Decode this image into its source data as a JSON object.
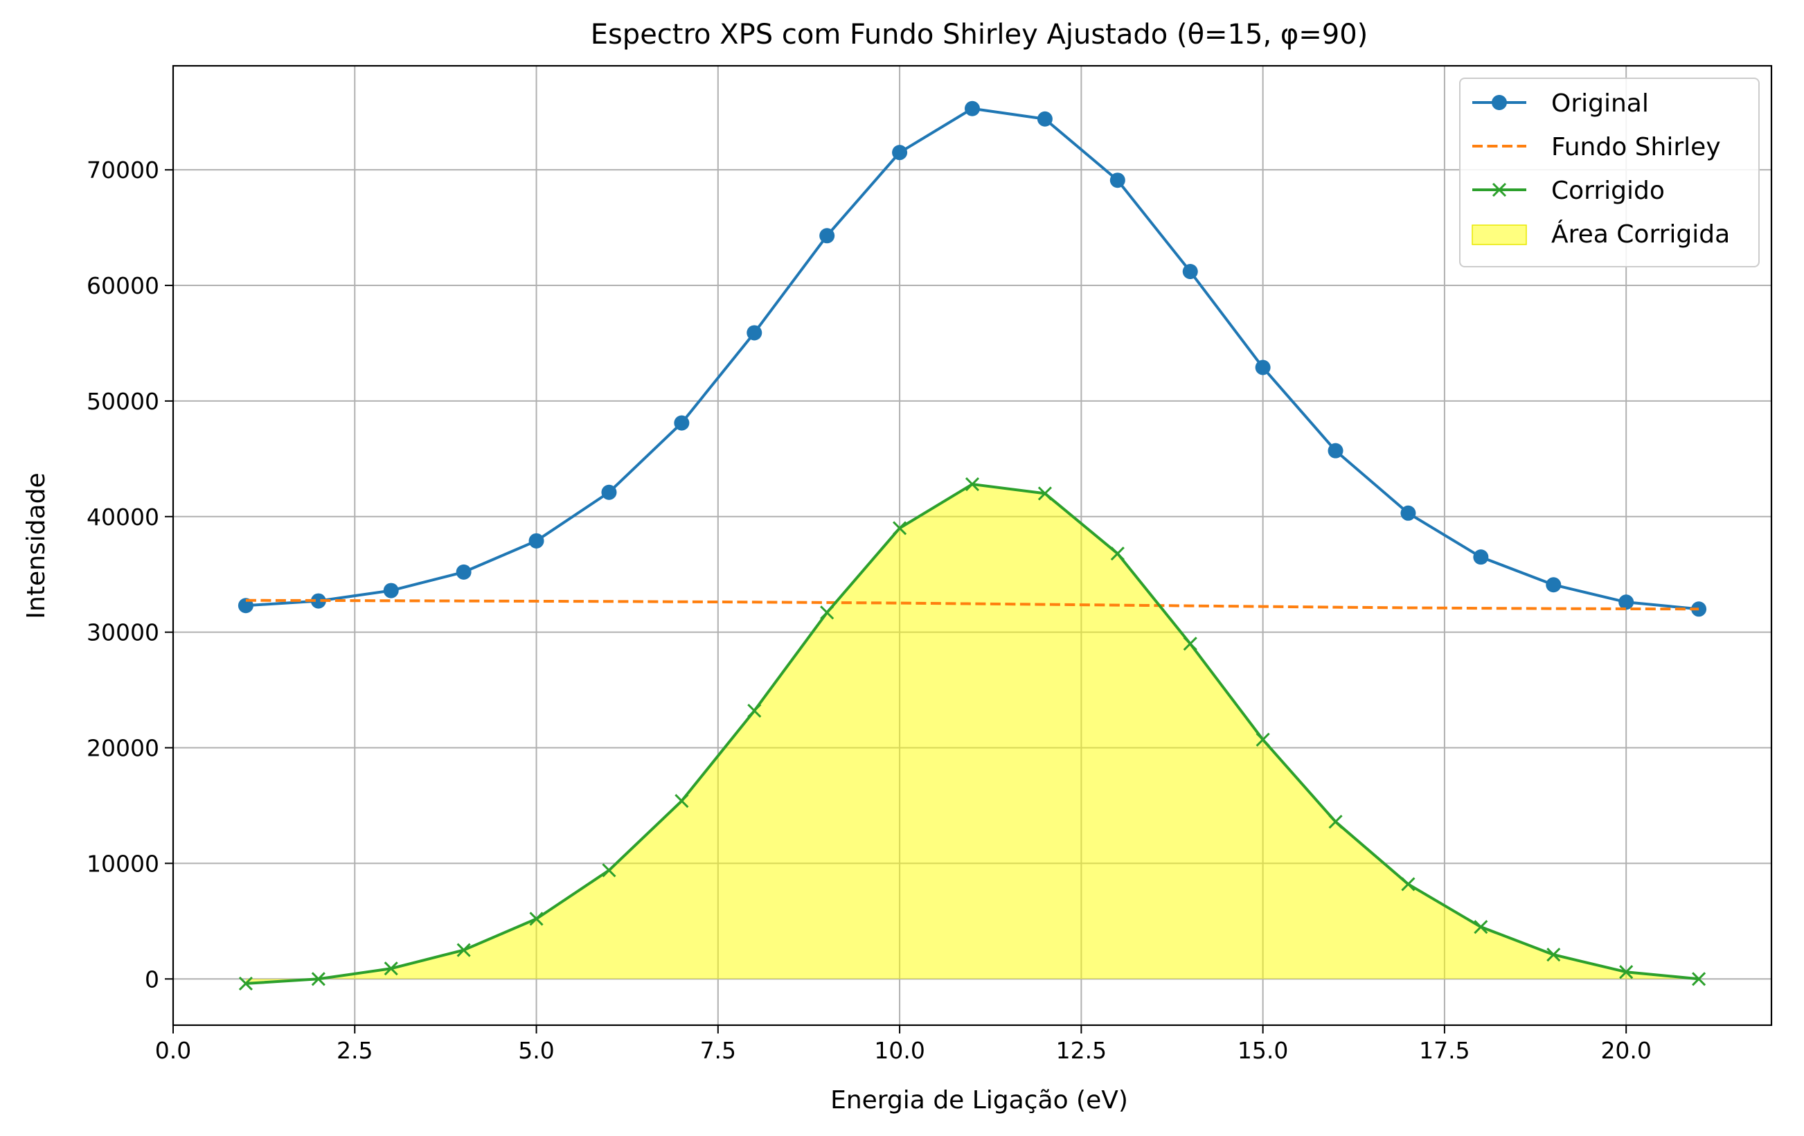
{
  "chart_data": {
    "type": "line",
    "title": "Espectro XPS com Fundo Shirley Ajustado (θ=15, φ=90)",
    "xlabel": "Energia de Ligação (eV)",
    "ylabel": "Intensidade",
    "xlim": [
      0,
      22
    ],
    "ylim": [
      -4000,
      79000
    ],
    "x_ticks": [
      0.0,
      2.5,
      5.0,
      7.5,
      10.0,
      12.5,
      15.0,
      17.5,
      20.0
    ],
    "x_tick_labels": [
      "0.0",
      "2.5",
      "5.0",
      "7.5",
      "10.0",
      "12.5",
      "15.0",
      "17.5",
      "20.0"
    ],
    "y_ticks": [
      0,
      10000,
      20000,
      30000,
      40000,
      50000,
      60000,
      70000
    ],
    "y_tick_labels": [
      "0",
      "10000",
      "20000",
      "30000",
      "40000",
      "50000",
      "60000",
      "70000"
    ],
    "grid": true,
    "legend_position": "top-right",
    "x": [
      1,
      2,
      3,
      4,
      5,
      6,
      7,
      8,
      9,
      10,
      11,
      12,
      13,
      14,
      15,
      16,
      17,
      18,
      19,
      20,
      21
    ],
    "series": [
      {
        "name": "Original",
        "style": "solid-circle",
        "color": "#1f77b4",
        "values": [
          32300,
          32700,
          33600,
          35200,
          37900,
          42100,
          48100,
          55900,
          64300,
          71500,
          75300,
          74400,
          69100,
          61200,
          52900,
          45700,
          40300,
          36500,
          34100,
          32600,
          32000
        ]
      },
      {
        "name": "Fundo Shirley",
        "style": "dashed",
        "color": "#ff7f0e",
        "values": [
          32750,
          32740,
          32720,
          32700,
          32680,
          32660,
          32630,
          32600,
          32560,
          32520,
          32460,
          32400,
          32340,
          32280,
          32220,
          32160,
          32110,
          32070,
          32040,
          32020,
          32000
        ]
      },
      {
        "name": "Corrigido",
        "style": "solid-x",
        "color": "#2ca02c",
        "values": [
          -400,
          0,
          900,
          2500,
          5200,
          9400,
          15400,
          23200,
          31700,
          39000,
          42800,
          42000,
          36800,
          29000,
          20700,
          13600,
          8200,
          4500,
          2100,
          600,
          0
        ]
      }
    ],
    "area": {
      "name": "Área Corrigida",
      "color": "#ffff00",
      "opacity": 0.5,
      "based_on": "Corrigido"
    }
  }
}
